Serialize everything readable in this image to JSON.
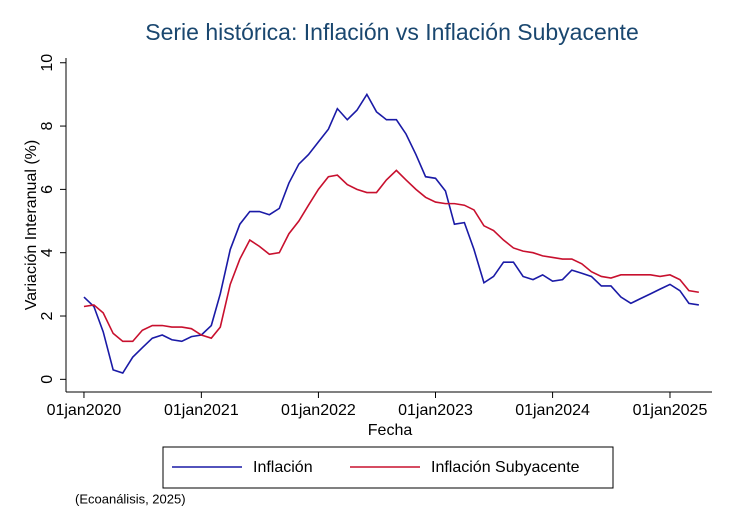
{
  "chart_data": {
    "type": "line",
    "title": "Serie histórica: Inflación vs Inflación Subyacente",
    "x_label": "Fecha",
    "y_label": "Variación Interanual (%)",
    "note": "(Ecoanálisis, 2025)",
    "x": [
      "2020-01-01",
      "2020-02-01",
      "2020-03-01",
      "2020-04-01",
      "2020-05-01",
      "2020-06-01",
      "2020-07-01",
      "2020-08-01",
      "2020-09-01",
      "2020-10-01",
      "2020-11-01",
      "2020-12-01",
      "2021-01-01",
      "2021-02-01",
      "2021-03-01",
      "2021-04-01",
      "2021-05-01",
      "2021-06-01",
      "2021-07-01",
      "2021-08-01",
      "2021-09-01",
      "2021-10-01",
      "2021-11-01",
      "2021-12-01",
      "2022-01-01",
      "2022-02-01",
      "2022-03-01",
      "2022-04-01",
      "2022-05-01",
      "2022-06-01",
      "2022-07-01",
      "2022-08-01",
      "2022-09-01",
      "2022-10-01",
      "2022-11-01",
      "2022-12-01",
      "2023-01-01",
      "2023-02-01",
      "2023-03-01",
      "2023-04-01",
      "2023-05-01",
      "2023-06-01",
      "2023-07-01",
      "2023-08-01",
      "2023-09-01",
      "2023-10-01",
      "2023-11-01",
      "2023-12-01",
      "2024-01-01",
      "2024-02-01",
      "2024-03-01",
      "2024-04-01",
      "2024-05-01",
      "2024-06-01",
      "2024-07-01",
      "2024-08-01",
      "2024-09-01",
      "2024-10-01",
      "2024-11-01",
      "2024-12-01",
      "2025-01-01",
      "2025-02-01",
      "2025-03-01",
      "2025-04-01"
    ],
    "series": [
      {
        "name": "Inflación",
        "color": "#1a1aa6",
        "values": [
          2.6,
          2.3,
          1.5,
          0.3,
          0.2,
          0.7,
          1.0,
          1.3,
          1.4,
          1.25,
          1.2,
          1.35,
          1.4,
          1.7,
          2.7,
          4.1,
          4.9,
          5.3,
          5.3,
          5.2,
          5.4,
          6.2,
          6.8,
          7.1,
          7.5,
          7.9,
          8.55,
          8.2,
          8.5,
          9.0,
          8.45,
          8.2,
          8.2,
          7.75,
          7.1,
          6.4,
          6.35,
          5.95,
          4.9,
          4.95,
          4.1,
          3.05,
          3.25,
          3.7,
          3.7,
          3.25,
          3.15,
          3.3,
          3.1,
          3.15,
          3.45,
          3.35,
          3.25,
          2.95,
          2.95,
          2.6,
          2.4,
          2.55,
          2.7,
          2.85,
          3.0,
          2.8,
          2.4,
          2.35
        ]
      },
      {
        "name": "Inflación Subyacente",
        "color": "#c8102e",
        "values": [
          2.3,
          2.35,
          2.1,
          1.45,
          1.2,
          1.2,
          1.55,
          1.7,
          1.7,
          1.65,
          1.65,
          1.6,
          1.4,
          1.3,
          1.65,
          3.0,
          3.8,
          4.4,
          4.2,
          3.95,
          4.0,
          4.6,
          5.0,
          5.5,
          6.0,
          6.4,
          6.45,
          6.15,
          6.0,
          5.9,
          5.9,
          6.3,
          6.6,
          6.3,
          6.0,
          5.75,
          5.6,
          5.55,
          5.55,
          5.5,
          5.35,
          4.85,
          4.7,
          4.4,
          4.15,
          4.05,
          4.0,
          3.9,
          3.85,
          3.8,
          3.8,
          3.65,
          3.4,
          3.25,
          3.2,
          3.3,
          3.3,
          3.3,
          3.3,
          3.25,
          3.3,
          3.15,
          2.8,
          2.75
        ]
      }
    ],
    "xlim": [
      "2019-11-06",
      "2025-05-12"
    ],
    "xticks": [
      {
        "value": "2020-01-01",
        "label": "01jan2020"
      },
      {
        "value": "2021-01-01",
        "label": "01jan2021"
      },
      {
        "value": "2022-01-01",
        "label": "01jan2022"
      },
      {
        "value": "2023-01-01",
        "label": "01jan2023"
      },
      {
        "value": "2024-01-01",
        "label": "01jan2024"
      },
      {
        "value": "2025-01-01",
        "label": "01jan2025"
      }
    ],
    "ylim": [
      -0.4,
      10.15
    ],
    "yticks": [
      0,
      2,
      4,
      6,
      8,
      10
    ],
    "legend": "bottom"
  }
}
